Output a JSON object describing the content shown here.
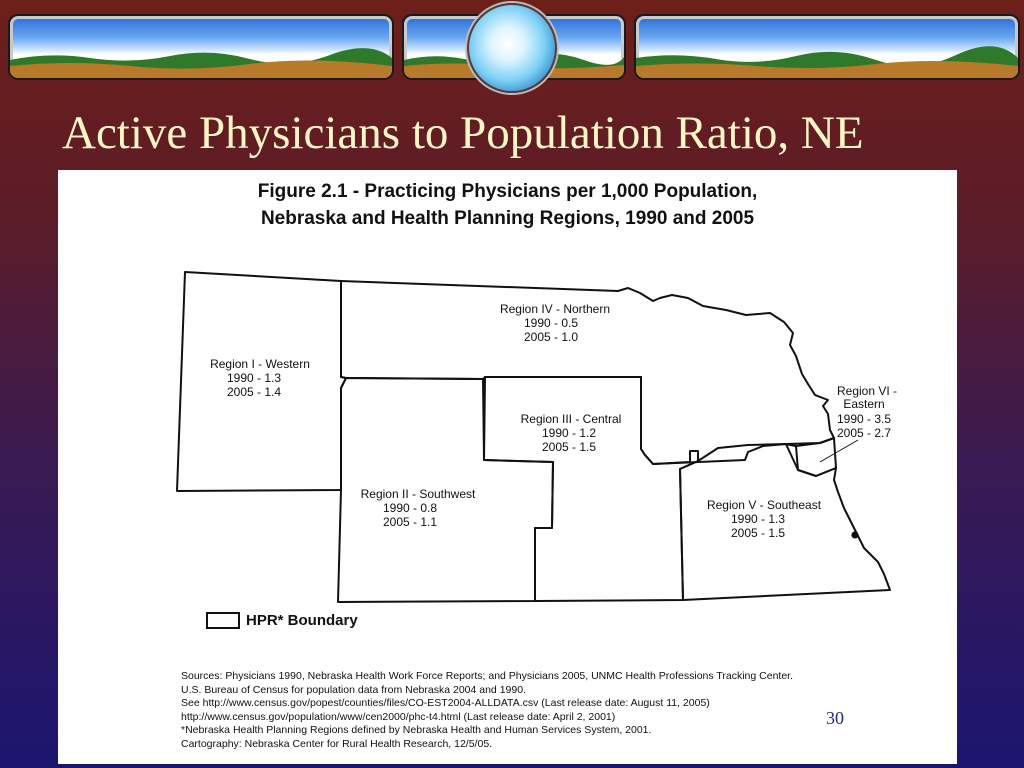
{
  "slide": {
    "title": "Active Physicians to Population Ratio, NE",
    "slide_number": "30",
    "colors": {
      "title": "#fff6c8",
      "background_top": "#6e1f19",
      "background_bottom": "#1c1570"
    }
  },
  "figure": {
    "title_line1": "Figure 2.1 - Practicing Physicians per 1,000 Population,",
    "title_line2": "Nebraska and Health Planning Regions, 1990 and 2005",
    "regions": [
      {
        "name": "Region I - Western",
        "line1990": "1990 - 1.3",
        "line2005": "2005 - 1.4",
        "value_1990": 1.3,
        "value_2005": 1.4
      },
      {
        "name": "Region II - Southwest",
        "line1990": "1990 - 0.8",
        "line2005": "2005 - 1.1",
        "value_1990": 0.8,
        "value_2005": 1.1
      },
      {
        "name": "Region III - Central",
        "line1990": "1990 - 1.2",
        "line2005": "2005 - 1.5",
        "value_1990": 1.2,
        "value_2005": 1.5
      },
      {
        "name": "Region IV - Northern",
        "line1990": "1990 - 0.5",
        "line2005": "2005 - 1.0",
        "value_1990": 0.5,
        "value_2005": 1.0
      },
      {
        "name": "Region V - Southeast",
        "line1990": "1990 - 1.3",
        "line2005": "2005 - 1.5",
        "value_1990": 1.3,
        "value_2005": 1.5
      },
      {
        "name": "Region VI -",
        "name2": "Eastern",
        "line1990": "1990 - 3.5",
        "line2005": "2005 - 2.7",
        "value_1990": 3.5,
        "value_2005": 2.7
      }
    ],
    "legend_label": "HPR* Boundary",
    "sources": [
      "Sources: Physicians 1990, Nebraska Health Work Force Reports; and Physicians 2005, UNMC Health Professions Tracking Center.",
      "U.S. Bureau of Census for population data from Nebraska 2004 and 1990.",
      "See http://www.census.gov/popest/counties/files/CO-EST2004-ALLDATA.csv (Last release date: August 11, 2005)",
      "http://www.census.gov/population/www/cen2000/phc-t4.html (Last release date: April 2, 2001)",
      "*Nebraska Health Planning Regions defined by Nebraska Health and Human Services System, 2001.",
      "Cartography: Nebraska Center for Rural Health Research, 12/5/05."
    ]
  }
}
